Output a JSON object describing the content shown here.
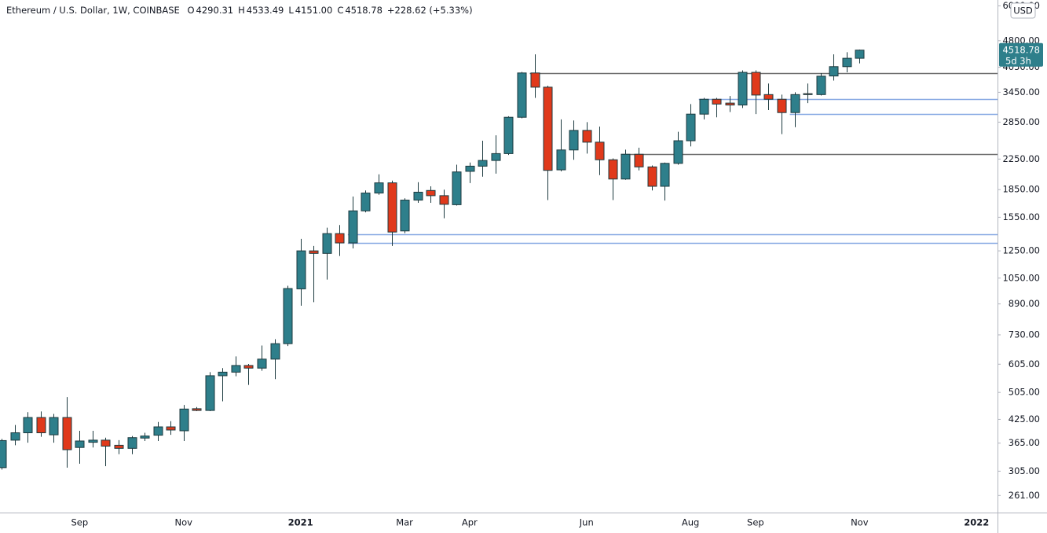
{
  "header": {
    "title": "Ethereum / U.S. Dollar, 1W, COINBASE",
    "fields": [
      {
        "label": "O",
        "value": "4290.31"
      },
      {
        "label": "H",
        "value": "4533.49"
      },
      {
        "label": "L",
        "value": "4151.00"
      },
      {
        "label": "C",
        "value": "4518.78"
      }
    ],
    "change": "+228.62 (+5.33%)"
  },
  "currency": "USD",
  "countdown": "5d 3h",
  "chart_data": {
    "type": "candlestick",
    "log_scale": true,
    "up_color": "#2e7f8b",
    "down_color": "#e0391b",
    "outline_color": "#1c3a3f",
    "categories": [
      null,
      null,
      null,
      null,
      null,
      null,
      "Sep",
      null,
      null,
      null,
      null,
      null,
      null,
      null,
      "Nov",
      null,
      null,
      null,
      null,
      null,
      null,
      null,
      null,
      "2021",
      null,
      null,
      null,
      null,
      null,
      null,
      null,
      "Mar",
      null,
      null,
      null,
      null,
      "Apr",
      null,
      null,
      null,
      null,
      null,
      null,
      null,
      null,
      "Jun",
      null,
      null,
      null,
      null,
      null,
      null,
      null,
      "Aug",
      null,
      null,
      null,
      null,
      "Sep",
      null,
      null,
      null,
      null,
      null,
      null,
      null,
      "Nov",
      null,
      null,
      null,
      null,
      null,
      null,
      null,
      null,
      "2022",
      null
    ],
    "open": [
      312,
      372,
      390,
      430,
      385,
      430,
      355,
      367,
      372,
      360,
      353,
      377,
      384,
      405,
      395,
      455,
      450,
      562,
      575,
      600,
      590,
      625,
      690,
      980,
      1250,
      1230,
      1396,
      1315,
      1615,
      1810,
      1932,
      1420,
      1730,
      1840,
      1780,
      1680,
      2080,
      2150,
      2230,
      2330,
      2940,
      3905,
      3565,
      2100,
      2385,
      2703,
      2507,
      2240,
      1980,
      2320,
      2140,
      1890,
      2189,
      2530,
      3000,
      3300,
      3220,
      3180,
      3920,
      3400,
      3300,
      3030,
      3420,
      3400,
      3830,
      4066,
      4290.31,
      null,
      null,
      null,
      null,
      null,
      null,
      null,
      null,
      null,
      null
    ],
    "high": [
      375,
      410,
      445,
      447,
      440,
      490,
      395,
      395,
      378,
      372,
      382,
      390,
      418,
      420,
      466,
      460,
      575,
      590,
      636,
      606,
      682,
      710,
      1000,
      1350,
      1290,
      1450,
      1475,
      1770,
      1840,
      2040,
      1960,
      1750,
      1940,
      1890,
      1850,
      2170,
      2200,
      2530,
      2620,
      2960,
      3930,
      4400,
      3600,
      2900,
      2880,
      2850,
      2770,
      2260,
      2390,
      2420,
      2160,
      2200,
      2680,
      3200,
      3330,
      3330,
      3370,
      3970,
      3970,
      3650,
      3400,
      3450,
      3650,
      3900,
      4400,
      4460,
      4533.49,
      null,
      null,
      null,
      null,
      null,
      null,
      null,
      null,
      null,
      null
    ],
    "low": [
      308,
      360,
      366,
      380,
      366,
      312,
      320,
      355,
      315,
      340,
      340,
      370,
      370,
      385,
      370,
      448,
      448,
      477,
      560,
      530,
      580,
      550,
      680,
      880,
      900,
      1040,
      1210,
      1270,
      1600,
      1790,
      1290,
      1400,
      1700,
      1700,
      1540,
      1670,
      1930,
      2010,
      2050,
      2310,
      2920,
      3330,
      1730,
      2080,
      2240,
      2330,
      2030,
      1730,
      1970,
      2093,
      1840,
      1725,
      2170,
      2440,
      2900,
      2940,
      3040,
      3120,
      3000,
      3080,
      2640,
      2760,
      3220,
      3380,
      3720,
      3920,
      4151,
      null,
      null,
      null,
      null,
      null,
      null,
      null,
      null,
      null,
      null
    ],
    "close": [
      371,
      390,
      430,
      390,
      430,
      350,
      370,
      372,
      358,
      353,
      378,
      382,
      405,
      397,
      454,
      450,
      562,
      575,
      600,
      590,
      625,
      690,
      982,
      1250,
      1230,
      1396,
      1315,
      1615,
      1810,
      1932,
      1410,
      1730,
      1820,
      1780,
      1684,
      2072,
      2150,
      2230,
      2330,
      2940,
      3905,
      3565,
      2093,
      2385,
      2703,
      2507,
      2240,
      1980,
      2320,
      2140,
      1890,
      2189,
      2530,
      3000,
      3300,
      3200,
      3180,
      3920,
      3390,
      3300,
      3030,
      3400,
      3400,
      3825,
      4066,
      4290,
      4518.78,
      null,
      null,
      null,
      null,
      null,
      null,
      null,
      null,
      null,
      null
    ],
    "levels": [
      {
        "value": 3905,
        "color": "#6e6e6e"
      },
      {
        "value": 3300,
        "color": "#86a8e3"
      },
      {
        "value": 3000,
        "color": "#86a8e3"
      },
      {
        "value": 2320,
        "color": "#6e6e6e"
      },
      {
        "value": 1390,
        "color": "#86a8e3"
      },
      {
        "value": 1315,
        "color": "#86a8e3"
      }
    ],
    "ylim": [
      234,
      6230
    ],
    "yticks": [
      {
        "value": 261,
        "label": "261.00"
      },
      {
        "value": 305,
        "label": "305.00"
      },
      {
        "value": 365,
        "label": "365.00"
      },
      {
        "value": 425,
        "label": "425.00"
      },
      {
        "value": 505,
        "label": "505.00"
      },
      {
        "value": 605,
        "label": "605.00"
      },
      {
        "value": 730,
        "label": "730.00"
      },
      {
        "value": 890,
        "label": "890.00"
      },
      {
        "value": 1050,
        "label": "1050.00"
      },
      {
        "value": 1250,
        "label": "1250.00"
      },
      {
        "value": 1550,
        "label": "1550.00"
      },
      {
        "value": 1850,
        "label": "1850.00"
      },
      {
        "value": 2250,
        "label": "2250.00"
      },
      {
        "value": 2850,
        "label": "2850.00"
      },
      {
        "value": 3450,
        "label": "3450.00"
      },
      {
        "value": 4050,
        "label": "4050.00"
      },
      {
        "value": 4800,
        "label": "4800.00"
      },
      {
        "value": 6000,
        "label": "6000.00"
      }
    ]
  }
}
